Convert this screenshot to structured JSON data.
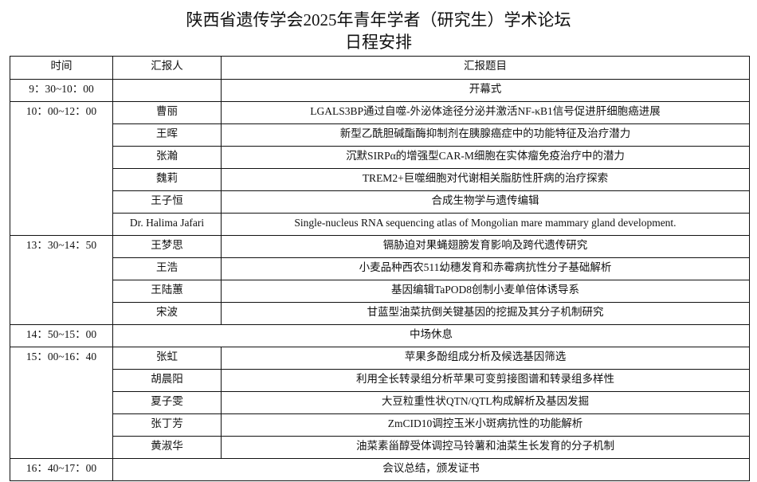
{
  "title": "陕西省遗传学会2025年青年学者（研究生）学术论坛",
  "subtitle": "日程安排",
  "headers": [
    "时间",
    "汇报人",
    "汇报题目"
  ],
  "opening": {
    "time": "9：30~10：00",
    "title": "开幕式"
  },
  "session1": {
    "time": "10：00~12：00",
    "talks": [
      {
        "speaker": "曹丽",
        "title": "LGALS3BP通过自噬-外泌体途径分泌并激活NF-κB1信号促进肝细胞癌进展"
      },
      {
        "speaker": "王晖",
        "title": "新型乙酰胆碱酯酶抑制剂在胰腺癌症中的功能特征及治疗潜力"
      },
      {
        "speaker": "张瀚",
        "title": "沉默SIRPα的增强型CAR-M细胞在实体瘤免疫治疗中的潜力"
      },
      {
        "speaker": "魏莉",
        "title": "TREM2+巨噬细胞对代谢相关脂肪性肝病的治疗探索"
      },
      {
        "speaker": "王子恒",
        "title": "合成生物学与遗传编辑"
      },
      {
        "speaker": "Dr. Halima Jafari",
        "title": "Single-nucleus RNA sequencing atlas of Mongolian mare mammary gland development."
      }
    ]
  },
  "session2": {
    "time": "13：30~14：50",
    "talks": [
      {
        "speaker": "王梦思",
        "title": "镉胁迫对果蝇翅膀发育影响及跨代遗传研究"
      },
      {
        "speaker": "王浩",
        "title": "小麦品种西农511幼穗发育和赤霉病抗性分子基础解析"
      },
      {
        "speaker": "王陆蕙",
        "title": "基因编辑TaPOD8创制小麦单倍体诱导系"
      },
      {
        "speaker": "宋波",
        "title": "甘蓝型油菜抗倒关键基因的挖掘及其分子机制研究"
      }
    ]
  },
  "break": {
    "time": "14：50~15：00",
    "title": "中场休息"
  },
  "session3": {
    "time": "15：00~16：40",
    "talks": [
      {
        "speaker": "张虹",
        "title": "苹果多酚组成分析及候选基因筛选"
      },
      {
        "speaker": "胡晨阳",
        "title": "利用全长转录组分析苹果可变剪接图谱和转录组多样性"
      },
      {
        "speaker": "夏子雯",
        "title": "大豆粒重性状QTN/QTL构成解析及基因发掘"
      },
      {
        "speaker": "张丁芳",
        "title": "ZmCID10调控玉米小斑病抗性的功能解析"
      },
      {
        "speaker": "黄淑华",
        "title": "油菜素甾醇受体调控马铃薯和油菜生长发育的分子机制"
      }
    ]
  },
  "closing": {
    "time": "16：40~17：00",
    "title": "会议总结，颁发证书"
  }
}
